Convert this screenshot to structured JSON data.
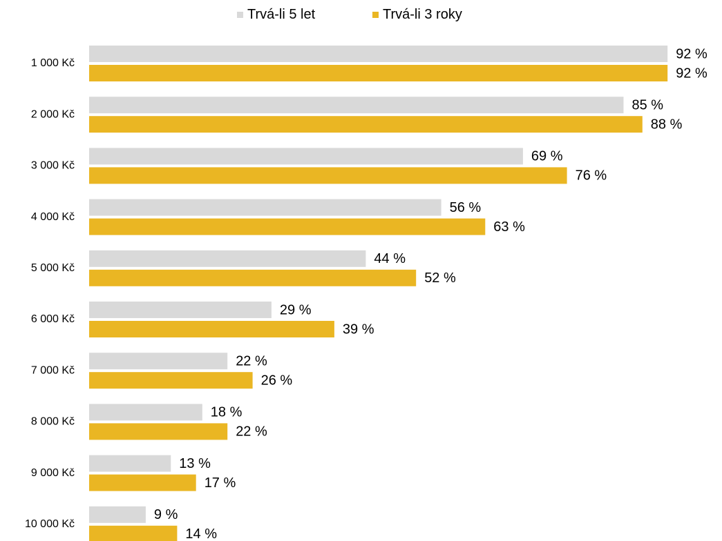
{
  "chart_data": {
    "type": "bar",
    "orientation": "horizontal",
    "categories": [
      "1 000 Kč",
      "2 000 Kč",
      "3 000 Kč",
      "4 000 Kč",
      "5 000 Kč",
      "6 000 Kč",
      "7 000 Kč",
      "8 000 Kč",
      "9 000 Kč",
      "10 000 Kč"
    ],
    "series": [
      {
        "name": "Trvá-li 5 let",
        "color": "#d9d9d9",
        "values": [
          92,
          85,
          69,
          56,
          44,
          29,
          22,
          18,
          13,
          9
        ],
        "labels": [
          "92 %",
          "85 %",
          "69 %",
          "56 %",
          "44 %",
          "29 %",
          "22 %",
          "18 %",
          "13 %",
          "9 %"
        ]
      },
      {
        "name": "Trvá-li 3 roky",
        "color": "#eab623",
        "values": [
          92,
          88,
          76,
          63,
          52,
          39,
          26,
          22,
          17,
          14
        ],
        "labels": [
          "92 %",
          "88 %",
          "76 %",
          "63 %",
          "52 %",
          "39 %",
          "26 %",
          "22 %",
          "17 %",
          "14 %"
        ]
      }
    ],
    "xlim": [
      0,
      100
    ],
    "grid": false,
    "legend_position": "top-center"
  }
}
